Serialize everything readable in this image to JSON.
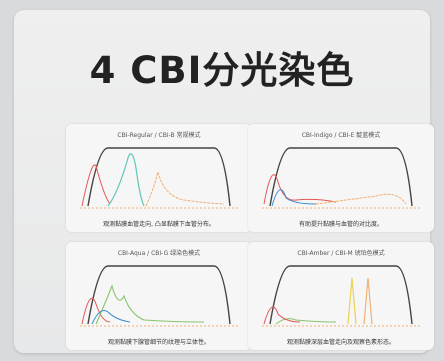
{
  "title": "4 CBI分光染色",
  "colors": {
    "curve_black": "#444444",
    "curve_teal": "#5fc6b7",
    "curve_blue": "#3e8ed0",
    "curve_red": "#e35757",
    "curve_orange": "#f2b072",
    "curve_yellow": "#e8d24f",
    "curve_green": "#86c56a"
  },
  "panels": [
    {
      "title": "CBI-Regular / CBI-B 常规模式",
      "caption": "观测黏膜血管走向, 凸显黏膜下血管分布。"
    },
    {
      "title": "CBI-Indigo / CBI-E 靛蓝模式",
      "caption": "有助提升黏膜与血管的对比度。"
    },
    {
      "title": "CBI-Aqua / CBI-G 绿染色模式",
      "caption": "观测黏膜下腺管细节的纹理与立体性。"
    },
    {
      "title": "CBI-Amber / CBI-M 琥珀色模式",
      "caption": "观测黏膜深层血管走向及观察色素形态。"
    }
  ]
}
